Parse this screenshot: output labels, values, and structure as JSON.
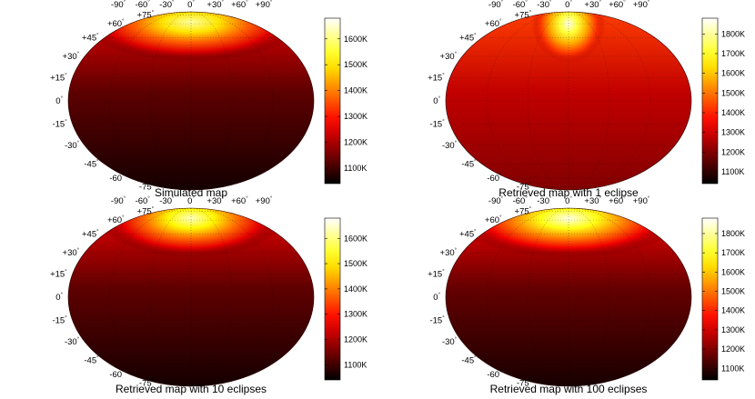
{
  "figure": {
    "panels": [
      {
        "caption": "Simulated map",
        "hotspot": {
          "lon": 0,
          "lat": 62,
          "spread_lon": 55,
          "spread_lat": 22,
          "peak": 1620
        },
        "baseline_temp": 1060,
        "colorbar": {
          "ticks": [
            "1600K",
            "1500K",
            "1400K",
            "1300K",
            "1200K",
            "1100K"
          ],
          "values": [
            1600,
            1500,
            1400,
            1300,
            1200,
            1100
          ],
          "range": [
            1040,
            1680
          ]
        }
      },
      {
        "caption": "Retrieved map with 1 eclipse",
        "hotspot": {
          "lon": 0,
          "lat": 60,
          "spread_lon": 18,
          "spread_lat": 22,
          "peak": 1860
        },
        "baseline_temp": 1200,
        "colorbar": {
          "ticks": [
            "1800K",
            "1700K",
            "1600K",
            "1500K",
            "1400K",
            "1300K",
            "1200K",
            "1100K"
          ],
          "values": [
            1800,
            1700,
            1600,
            1500,
            1400,
            1300,
            1200,
            1100
          ],
          "range": [
            1040,
            1880
          ]
        }
      },
      {
        "caption": "Retrieved map with 10 eclipses",
        "hotspot": {
          "lon": 0,
          "lat": 62,
          "spread_lon": 45,
          "spread_lat": 22,
          "peak": 1640
        },
        "baseline_temp": 1060,
        "colorbar": {
          "ticks": [
            "1600K",
            "1500K",
            "1400K",
            "1300K",
            "1200K",
            "1100K"
          ],
          "values": [
            1600,
            1500,
            1400,
            1300,
            1200,
            1100
          ],
          "range": [
            1040,
            1680
          ]
        }
      },
      {
        "caption": "Retrieved map with 100 eclipses",
        "hotspot": {
          "lon": 0,
          "lat": 62,
          "spread_lon": 55,
          "spread_lat": 22,
          "peak": 1860
        },
        "baseline_temp": 1070,
        "colorbar": {
          "ticks": [
            "1800K",
            "1700K",
            "1600K",
            "1500K",
            "1400K",
            "1300K",
            "1200K",
            "1100K"
          ],
          "values": [
            1800,
            1700,
            1600,
            1500,
            1400,
            1300,
            1200,
            1100
          ],
          "range": [
            1040,
            1880
          ]
        }
      }
    ],
    "lon_labels": [
      "-90",
      "-60",
      "-30",
      "0",
      "+30",
      "+60",
      "+90"
    ],
    "lon_values": [
      -90,
      -60,
      -30,
      0,
      30,
      60,
      90
    ],
    "lat_labels": [
      "+75",
      "+60",
      "+45",
      "+30",
      "+15",
      "0",
      "-15",
      "-30",
      "-45",
      "-60",
      "-75"
    ],
    "lat_values": [
      75,
      60,
      45,
      30,
      15,
      0,
      -15,
      -30,
      -45,
      -60,
      -75
    ],
    "degree_symbol": "°",
    "colormap": "hot"
  }
}
